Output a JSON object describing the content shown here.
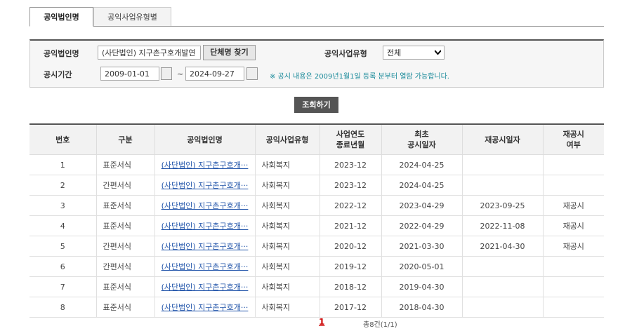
{
  "tabs": [
    "공익법인명",
    "공익사업유형별"
  ],
  "search": {
    "name_label": "공익법인명",
    "name_value": "(사단법인) 지구촌구호개발연",
    "find_button": "단체명 찾기",
    "type_label": "공익사업유형",
    "type_value": "전체",
    "period_label": "공시기간",
    "start_date": "2009-01-01",
    "separator": "~",
    "end_date": "2024-09-27",
    "note": "※ 공시 내용은 2009년1월1일 등록 분부터 열람 가능합니다.",
    "submit_button": "조회하기"
  },
  "table": {
    "headers": [
      [
        "번호"
      ],
      [
        "구분"
      ],
      [
        "공익법인명"
      ],
      [
        "공익사업유형"
      ],
      [
        "사업연도",
        "종료년월"
      ],
      [
        "최초",
        "공시일자"
      ],
      [
        "재공시일자"
      ],
      [
        "재공시",
        "여부"
      ]
    ],
    "rows": [
      [
        1,
        "표준서식",
        "(사단법인) 지구촌구호개···",
        "사회복지",
        "2023-12",
        "2024-04-25",
        null,
        null
      ],
      [
        2,
        "간편서식",
        "(사단법인) 지구촌구호개···",
        "사회복지",
        "2023-12",
        "2024-04-25",
        null,
        null
      ],
      [
        3,
        "표준서식",
        "(사단법인) 지구촌구호개···",
        "사회복지",
        "2022-12",
        "2023-04-29",
        "2023-09-25",
        "재공시"
      ],
      [
        4,
        "표준서식",
        "(사단법인) 지구촌구호개···",
        "사회복지",
        "2021-12",
        "2022-04-29",
        "2022-11-08",
        "재공시"
      ],
      [
        5,
        "간편서식",
        "(사단법인) 지구촌구호개···",
        "사회복지",
        "2020-12",
        "2021-03-30",
        "2021-04-30",
        "재공시"
      ],
      [
        6,
        "간편서식",
        "(사단법인) 지구촌구호개···",
        "사회복지",
        "2019-12",
        "2020-05-01",
        null,
        null
      ],
      [
        7,
        "표준서식",
        "(사단법인) 지구촌구호개···",
        "사회복지",
        "2018-12",
        "2019-04-30",
        null,
        null
      ],
      [
        8,
        "표준서식",
        "(사단법인) 지구촌구호개···",
        "사회복지",
        "2017-12",
        "2018-04-30",
        null,
        null
      ]
    ]
  },
  "pagination": {
    "current_page": 1,
    "summary": "총8건(1/1)"
  }
}
